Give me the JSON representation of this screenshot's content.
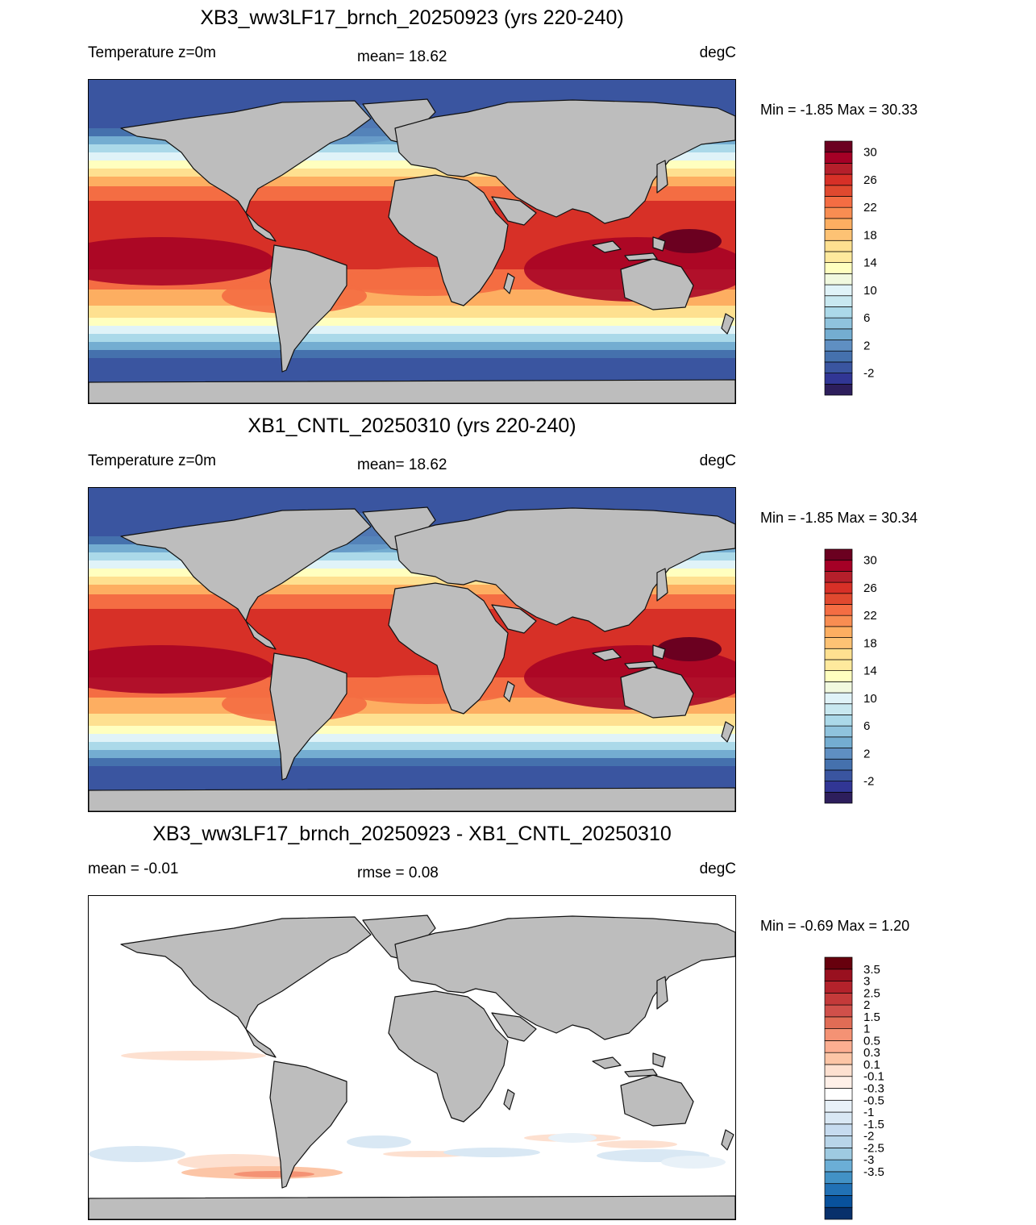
{
  "panels": [
    {
      "title": "XB3_ww3LF17_brnch_20250923 (yrs 220-240)",
      "left_label": "Temperature z=0m",
      "mid_label": "mean=  18.62",
      "right_label": "degC",
      "minmax": "Min =  -1.85 Max =  30.33",
      "colorbar": {
        "colors": [
          "#2d1e5c",
          "#313695",
          "#3a55a0",
          "#4571ad",
          "#5f8fc2",
          "#74add1",
          "#8fc3dd",
          "#abd9e9",
          "#c8e8f0",
          "#e0f3f8",
          "#f1f9df",
          "#ffffbf",
          "#fee99d",
          "#fee090",
          "#fdc274",
          "#fdae61",
          "#f88d52",
          "#f46d43",
          "#e0492f",
          "#d73027",
          "#b51f2b",
          "#a50026",
          "#6b0020"
        ],
        "labels": [
          "30",
          "26",
          "22",
          "18",
          "14",
          "10",
          "6",
          "2",
          "-2"
        ]
      }
    },
    {
      "title": "XB1_CNTL_20250310 (yrs 220-240)",
      "left_label": "Temperature z=0m",
      "mid_label": "mean=  18.62",
      "right_label": "degC",
      "minmax": "Min =  -1.85 Max =  30.34",
      "colorbar": {
        "colors": [
          "#2d1e5c",
          "#313695",
          "#3a55a0",
          "#4571ad",
          "#5f8fc2",
          "#74add1",
          "#8fc3dd",
          "#abd9e9",
          "#c8e8f0",
          "#e0f3f8",
          "#f1f9df",
          "#ffffbf",
          "#fee99d",
          "#fee090",
          "#fdc274",
          "#fdae61",
          "#f88d52",
          "#f46d43",
          "#e0492f",
          "#d73027",
          "#b51f2b",
          "#a50026",
          "#6b0020"
        ],
        "labels": [
          "30",
          "26",
          "22",
          "18",
          "14",
          "10",
          "6",
          "2",
          "-2"
        ]
      }
    },
    {
      "title": "XB3_ww3LF17_brnch_20250923 - XB1_CNTL_20250310",
      "left_label": "mean =  -0.01",
      "mid_label": "rmse =   0.08",
      "right_label": "degC",
      "minmax": "Min =  -0.69 Max =   1.20",
      "colorbar": {
        "colors": [
          "#08306b",
          "#08519c",
          "#2171b5",
          "#4292c6",
          "#6baed6",
          "#9ecae1",
          "#b8d5e9",
          "#c6dbef",
          "#d9e8f4",
          "#e8f1f8",
          "#ffffff",
          "#fff0e8",
          "#fde0d0",
          "#fcc5a6",
          "#fcae91",
          "#f49274",
          "#e06c55",
          "#d0504a",
          "#c43a3a",
          "#b3222b",
          "#99101f",
          "#67000d"
        ],
        "labels": [
          "3.5",
          "3",
          "2.5",
          "2",
          "1.5",
          "1",
          "0.5",
          "0.3",
          "0.1",
          "-0.1",
          "-0.3",
          "-0.5",
          "-1",
          "-1.5",
          "-2",
          "-2.5",
          "-3",
          "-3.5"
        ]
      }
    }
  ]
}
